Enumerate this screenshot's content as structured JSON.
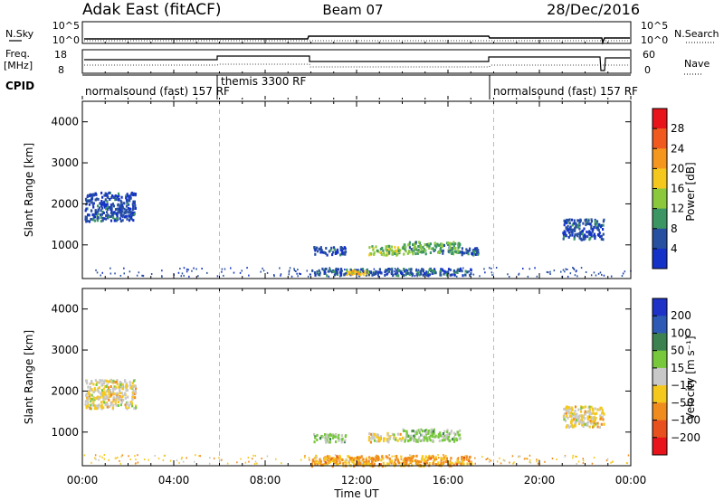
{
  "header": {
    "radar": "Adak East (fitACF)",
    "beam": "Beam 07",
    "date": "28/Dec/2016"
  },
  "top_panels": {
    "nsky_label": "N.Sky",
    "nsky_ticks": [
      "10^5",
      "10^0"
    ],
    "nsearch_label": "N.Search",
    "nsearch_ticks": [
      "10^5",
      "10^0"
    ],
    "freq_label": "Freq.",
    "freq_unit": "[MHz]",
    "freq_ticks": [
      "18",
      "8"
    ],
    "nave_label": "Nave",
    "nave_ticks": [
      "60",
      "0"
    ],
    "cpid_label": "CPID",
    "cpid_segments": [
      {
        "label": "normalsound (fast) 157 RF",
        "start": 0,
        "end": 6
      },
      {
        "label": "themis 3300 RF",
        "start": 6,
        "end": 18
      },
      {
        "label": "normalsound (fast) 157 RF",
        "start": 18,
        "end": 24
      }
    ]
  },
  "axes": {
    "slant_range_label": "Slant Range [km]",
    "time_label": "Time UT",
    "time_ticks": [
      "00:00",
      "04:00",
      "08:00",
      "12:00",
      "16:00",
      "20:00",
      "00:00"
    ],
    "range_ticks": [
      "4000",
      "3000",
      "2000",
      "1000"
    ]
  },
  "power_colorbar": {
    "title": "Power [dB]",
    "ticks": [
      "28",
      "24",
      "20",
      "16",
      "12",
      "8",
      "4"
    ],
    "colors": [
      "#e8141a",
      "#f05a1e",
      "#f5961e",
      "#f5c81e",
      "#8cc83c",
      "#3c9664",
      "#2850a0",
      "#1432c8"
    ]
  },
  "velocity_colorbar": {
    "title": "Velocity [m s⁻¹]",
    "ticks": [
      "200",
      "100",
      "50",
      "15",
      "−15",
      "−50",
      "−100",
      "−200"
    ],
    "colors": [
      "#1e32c8",
      "#2d5ab4",
      "#3c8250",
      "#78c83c",
      "#c8c8c8",
      "#f5c81e",
      "#f08c1e",
      "#e8501e",
      "#e8141a"
    ]
  },
  "chart_data": [
    {
      "type": "heatmap",
      "title": "Power [dB]",
      "xlabel": "Time UT",
      "ylabel": "Slant Range [km]",
      "xlim": [
        0,
        24
      ],
      "ylim": [
        180,
        4500
      ],
      "clim": [
        0,
        32
      ],
      "blobs": [
        {
          "t0": 0.1,
          "t1": 2.3,
          "r0": 1600,
          "r1": 2300,
          "level": 5
        },
        {
          "t0": 10.1,
          "t1": 11.5,
          "r0": 780,
          "r1": 980,
          "level": 5
        },
        {
          "t0": 12.5,
          "t1": 14.0,
          "r0": 780,
          "r1": 1000,
          "level": 14
        },
        {
          "t0": 14.0,
          "t1": 16.5,
          "r0": 800,
          "r1": 1100,
          "level": 11
        },
        {
          "t0": 16.5,
          "t1": 17.3,
          "r0": 780,
          "r1": 950,
          "level": 5
        },
        {
          "t0": 10.0,
          "t1": 17.0,
          "r0": 280,
          "r1": 450,
          "level": 6
        },
        {
          "t0": 11.5,
          "t1": 12.5,
          "r0": 300,
          "r1": 400,
          "level": 19
        },
        {
          "t0": 21.0,
          "t1": 22.8,
          "r0": 1150,
          "r1": 1650,
          "level": 5
        }
      ]
    },
    {
      "type": "heatmap",
      "title": "Velocity [m s⁻¹]",
      "xlabel": "Time UT",
      "ylabel": "Slant Range [km]",
      "xlim": [
        0,
        24
      ],
      "ylim": [
        180,
        4500
      ],
      "clim": [
        -250,
        250
      ],
      "blobs": [
        {
          "t0": 0.1,
          "t1": 2.3,
          "r0": 1600,
          "r1": 2300,
          "velocity": 0
        },
        {
          "t0": 10.1,
          "t1": 11.5,
          "r0": 780,
          "r1": 980,
          "velocity": 40
        },
        {
          "t0": 12.5,
          "t1": 14.0,
          "r0": 780,
          "r1": 1000,
          "velocity": 0
        },
        {
          "t0": 14.0,
          "t1": 16.5,
          "r0": 800,
          "r1": 1100,
          "velocity": 40
        },
        {
          "t0": 10.0,
          "t1": 17.0,
          "r0": 200,
          "r1": 450,
          "velocity": -40
        },
        {
          "t0": 21.0,
          "t1": 22.8,
          "r0": 1150,
          "r1": 1650,
          "velocity": 0
        }
      ]
    }
  ]
}
